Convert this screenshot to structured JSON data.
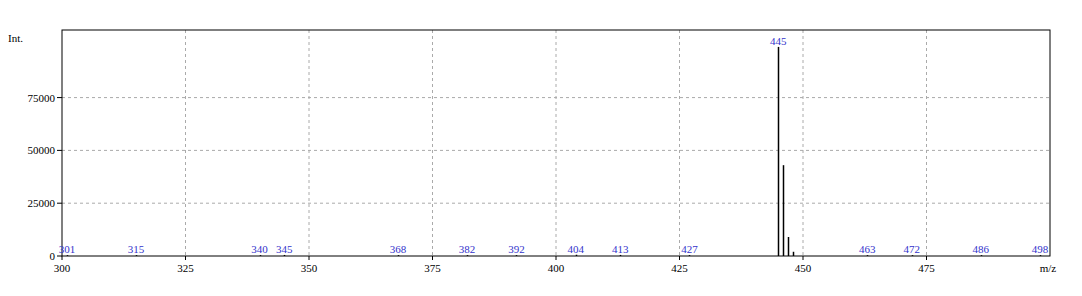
{
  "chart_data": {
    "type": "stem",
    "x_label": "m/z",
    "y_label": "Int.",
    "x": [
      301,
      315,
      340,
      345,
      368,
      382,
      392,
      404,
      413,
      427,
      445,
      446,
      447,
      448,
      463,
      472,
      486,
      498
    ],
    "values": [
      400,
      400,
      400,
      500,
      400,
      400,
      400,
      600,
      500,
      400,
      99000,
      43000,
      9000,
      2000,
      400,
      400,
      400,
      400
    ],
    "peak_labels": [
      301,
      315,
      340,
      345,
      368,
      382,
      392,
      404,
      413,
      427,
      445,
      null,
      null,
      null,
      463,
      472,
      486,
      498
    ],
    "color": "#000000",
    "xlim": [
      300,
      500
    ],
    "xticks": [
      300,
      325,
      350,
      375,
      400,
      425,
      450,
      475
    ],
    "ylim": [
      0,
      107000
    ],
    "yticks": [
      0,
      25000,
      50000,
      75000
    ],
    "grid": true
  }
}
